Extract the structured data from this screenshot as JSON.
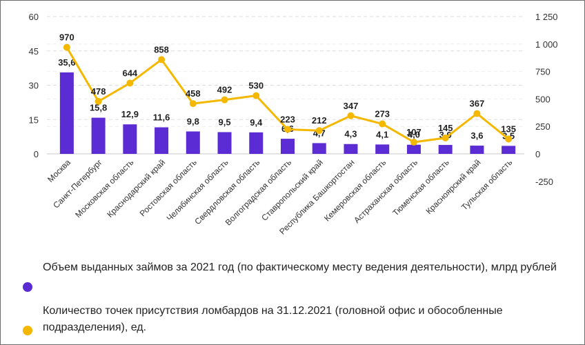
{
  "chart_data": {
    "type": "bar+line",
    "categories": [
      "Москва",
      "Санкт-Петербург",
      "Московская область",
      "Краснодарский край",
      "Ростовская область",
      "Челябинская область",
      "Свердловская область",
      "Волгоградская область",
      "Ставропольский край",
      "Республика Башкортостан",
      "Кемеровская область",
      "Астраханская область",
      "Тюменская область",
      "Красноярский край",
      "Тульская область"
    ],
    "series": [
      {
        "name": "Объем выданных займов за 2021 год (по фактическому месту ведения деятельности), млрд рублей",
        "type": "bar",
        "axis": "left",
        "color": "#5b2bd4",
        "values": [
          35.6,
          15.8,
          12.9,
          11.6,
          9.8,
          9.5,
          9.4,
          6.6,
          4.7,
          4.3,
          4.1,
          4.0,
          3.9,
          3.6,
          3.5
        ],
        "labels": [
          "35,6",
          "15,8",
          "12,9",
          "11,6",
          "9,8",
          "9,5",
          "9,4",
          "6,6",
          "4,7",
          "4,3",
          "4,1",
          "4,0",
          "3,9",
          "3,6",
          "3,5"
        ]
      },
      {
        "name": "Количество точек присутствия ломбардов на 31.12.2021 (головной офис и обособленные подразделения), ед.",
        "type": "line",
        "axis": "right",
        "color": "#f5b800",
        "values": [
          970,
          478,
          644,
          858,
          458,
          492,
          530,
          223,
          212,
          347,
          273,
          107,
          145,
          367,
          135
        ],
        "labels": [
          "970",
          "478",
          "644",
          "858",
          "458",
          "492",
          "530",
          "223",
          "212",
          "347",
          "273",
          "107",
          "145",
          "367",
          "135"
        ]
      }
    ],
    "y_left": {
      "min": 0,
      "max": 60,
      "ticks": [
        0,
        15,
        30,
        45,
        60
      ],
      "tick_labels": [
        "0",
        "15",
        "30",
        "45",
        "60"
      ]
    },
    "y_right": {
      "min": -250,
      "max": 1250,
      "ticks": [
        -250,
        0,
        250,
        500,
        750,
        1000,
        1250
      ],
      "tick_labels": [
        "-250",
        "0",
        "250",
        "500",
        "750",
        "1 000",
        "1 250"
      ]
    },
    "grid": "horizontal dashed",
    "legend_position": "bottom-left"
  }
}
